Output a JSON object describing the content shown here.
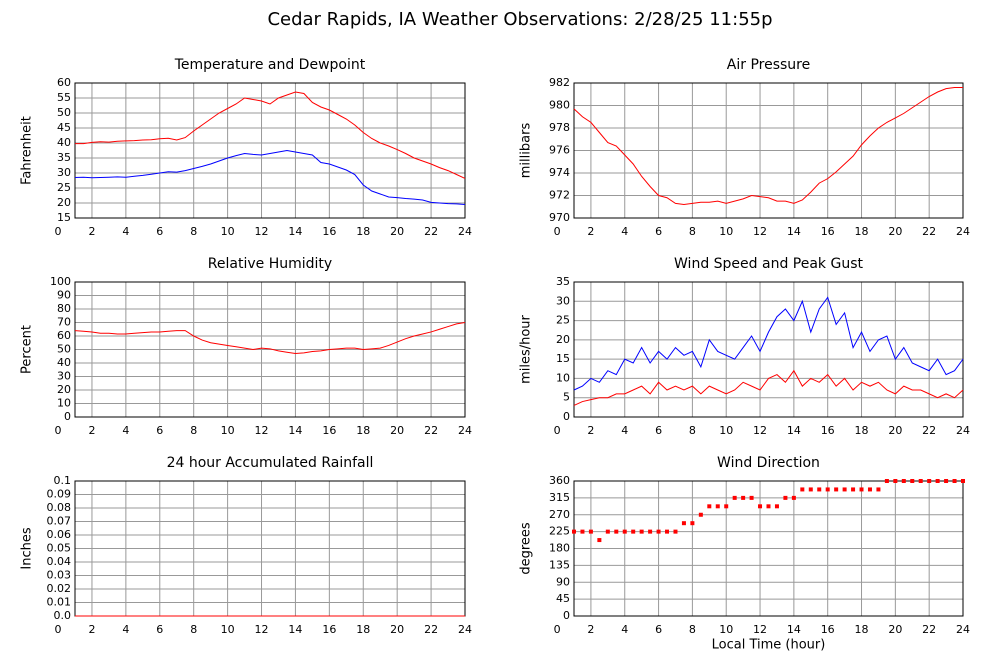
{
  "title": "Cedar Rapids, IA Weather Observations: 2/28/25 11:55p",
  "chart_data": [
    {
      "type": "line",
      "title": "Temperature and Dewpoint",
      "ylabel": "Fahrenheit",
      "x": [
        1,
        1.5,
        2,
        2.5,
        3,
        3.5,
        4,
        4.5,
        5,
        5.5,
        6,
        6.5,
        7,
        7.5,
        8,
        8.5,
        9,
        9.5,
        10,
        10.5,
        11,
        11.5,
        12,
        12.5,
        13,
        13.5,
        14,
        14.5,
        15,
        15.5,
        16,
        16.5,
        17,
        17.5,
        18,
        18.5,
        19,
        19.5,
        20,
        20.5,
        21,
        21.5,
        22,
        22.5,
        23,
        23.5,
        24
      ],
      "series": [
        {
          "name": "Temperature",
          "color": "#ff0000",
          "values": [
            39.8,
            39.8,
            40.2,
            40.4,
            40.3,
            40.6,
            40.7,
            40.8,
            41,
            41.1,
            41.4,
            41.6,
            41,
            41.8,
            44,
            46,
            48,
            50,
            51.5,
            53,
            55,
            54.5,
            54,
            53,
            55,
            56,
            57,
            56.5,
            53.5,
            52,
            51,
            49.5,
            48,
            46,
            43.5,
            41.5,
            40,
            39,
            37.8,
            36.5,
            35,
            34,
            33,
            31.8,
            30.8,
            29.5,
            28.2
          ]
        },
        {
          "name": "Dewpoint",
          "color": "#0000ff",
          "values": [
            28.5,
            28.6,
            28.4,
            28.5,
            28.6,
            28.7,
            28.6,
            28.9,
            29.2,
            29.6,
            30,
            30.4,
            30.3,
            30.8,
            31.5,
            32.2,
            33,
            34,
            35,
            35.8,
            36.5,
            36.2,
            36,
            36.5,
            37,
            37.5,
            37,
            36.5,
            36,
            33.5,
            33,
            32,
            31,
            29.5,
            26,
            24,
            23,
            22,
            21.8,
            21.5,
            21.3,
            21,
            20.2,
            20,
            19.8,
            19.7,
            19.5
          ]
        }
      ],
      "xlim": [
        1,
        24
      ],
      "xticks": [
        0,
        2,
        4,
        6,
        8,
        10,
        12,
        14,
        16,
        18,
        20,
        22,
        24
      ],
      "ylim": [
        15,
        60
      ],
      "yticks": [
        15,
        20,
        25,
        30,
        35,
        40,
        45,
        50,
        55,
        60
      ],
      "grid": true
    },
    {
      "type": "line",
      "title": "Air Pressure",
      "ylabel": "millibars",
      "x": [
        1,
        1.5,
        2,
        2.5,
        3,
        3.5,
        4,
        4.5,
        5,
        5.5,
        6,
        6.5,
        7,
        7.5,
        8,
        8.5,
        9,
        9.5,
        10,
        10.5,
        11,
        11.5,
        12,
        12.5,
        13,
        13.5,
        14,
        14.5,
        15,
        15.5,
        16,
        16.5,
        17,
        17.5,
        18,
        18.5,
        19,
        19.5,
        20,
        20.5,
        21,
        21.5,
        22,
        22.5,
        23,
        23.5,
        24
      ],
      "series": [
        {
          "name": "Pressure",
          "color": "#ff0000",
          "values": [
            979.7,
            979,
            978.5,
            977.6,
            976.7,
            976.4,
            975.6,
            974.8,
            973.7,
            972.8,
            972,
            971.8,
            971.3,
            971.2,
            971.3,
            971.4,
            971.4,
            971.5,
            971.3,
            971.5,
            971.7,
            972,
            971.9,
            971.8,
            971.5,
            971.5,
            971.3,
            971.6,
            972.3,
            973.1,
            973.5,
            974.1,
            974.8,
            975.5,
            976.5,
            977.3,
            978,
            978.5,
            978.9,
            979.3,
            979.8,
            980.3,
            980.8,
            981.2,
            981.5,
            981.6,
            981.6
          ]
        }
      ],
      "xlim": [
        1,
        24
      ],
      "xticks": [
        0,
        2,
        4,
        6,
        8,
        10,
        12,
        14,
        16,
        18,
        20,
        22,
        24
      ],
      "ylim": [
        970,
        982
      ],
      "yticks": [
        970,
        972,
        974,
        976,
        978,
        980,
        982
      ],
      "grid": true
    },
    {
      "type": "line",
      "title": "Relative Humidity",
      "ylabel": "Percent",
      "x": [
        1,
        1.5,
        2,
        2.5,
        3,
        3.5,
        4,
        4.5,
        5,
        5.5,
        6,
        6.5,
        7,
        7.5,
        8,
        8.5,
        9,
        9.5,
        10,
        10.5,
        11,
        11.5,
        12,
        12.5,
        13,
        13.5,
        14,
        14.5,
        15,
        15.5,
        16,
        16.5,
        17,
        17.5,
        18,
        18.5,
        19,
        19.5,
        20,
        20.5,
        21,
        21.5,
        22,
        22.5,
        23,
        23.5,
        24
      ],
      "series": [
        {
          "name": "Relative Humidity",
          "color": "#ff0000",
          "values": [
            64,
            63.5,
            63,
            62,
            62,
            61.5,
            61.5,
            62,
            62.5,
            63,
            63,
            63.5,
            64,
            64,
            60,
            57,
            55,
            54,
            53,
            52,
            51,
            50,
            51,
            50.5,
            49,
            48,
            47,
            47.5,
            48.5,
            49,
            50,
            50.5,
            51,
            51,
            50,
            50.5,
            51,
            53,
            55.5,
            58,
            60,
            61.5,
            63,
            65,
            67,
            69,
            70
          ]
        }
      ],
      "xlim": [
        1,
        24
      ],
      "xticks": [
        0,
        2,
        4,
        6,
        8,
        10,
        12,
        14,
        16,
        18,
        20,
        22,
        24
      ],
      "ylim": [
        0,
        100
      ],
      "yticks": [
        0,
        10,
        20,
        30,
        40,
        50,
        60,
        70,
        80,
        90,
        100
      ],
      "grid": true
    },
    {
      "type": "line",
      "title": "Wind Speed and Peak Gust",
      "ylabel": "miles/hour",
      "x": [
        1,
        1.5,
        2,
        2.5,
        3,
        3.5,
        4,
        4.5,
        5,
        5.5,
        6,
        6.5,
        7,
        7.5,
        8,
        8.5,
        9,
        9.5,
        10,
        10.5,
        11,
        11.5,
        12,
        12.5,
        13,
        13.5,
        14,
        14.5,
        15,
        15.5,
        16,
        16.5,
        17,
        17.5,
        18,
        18.5,
        19,
        19.5,
        20,
        20.5,
        21,
        21.5,
        22,
        22.5,
        23,
        23.5,
        24
      ],
      "series": [
        {
          "name": "Peak Gust",
          "color": "#0000ff",
          "values": [
            7,
            8,
            10,
            9,
            12,
            11,
            15,
            14,
            18,
            14,
            17,
            15,
            18,
            16,
            17,
            13,
            20,
            17,
            16,
            15,
            18,
            21,
            17,
            22,
            26,
            28,
            25,
            30,
            22,
            28,
            31,
            24,
            27,
            18,
            22,
            17,
            20,
            21,
            15,
            18,
            14,
            13,
            12,
            15,
            11,
            12,
            15
          ]
        },
        {
          "name": "Wind Speed",
          "color": "#ff0000",
          "values": [
            3,
            4,
            4.5,
            5,
            5,
            6,
            6,
            7,
            8,
            6,
            9,
            7,
            8,
            7,
            8,
            6,
            8,
            7,
            6,
            7,
            9,
            8,
            7,
            10,
            11,
            9,
            12,
            8,
            10,
            9,
            11,
            8,
            10,
            7,
            9,
            8,
            9,
            7,
            6,
            8,
            7,
            7,
            6,
            5,
            6,
            5,
            7
          ]
        }
      ],
      "xlim": [
        1,
        24
      ],
      "xticks": [
        0,
        2,
        4,
        6,
        8,
        10,
        12,
        14,
        16,
        18,
        20,
        22,
        24
      ],
      "ylim": [
        0,
        35
      ],
      "yticks": [
        0,
        5,
        10,
        15,
        20,
        25,
        30,
        35
      ],
      "grid": true
    },
    {
      "type": "line",
      "title": "24 hour Accumulated Rainfall",
      "ylabel": "Inches",
      "x": [
        1,
        24
      ],
      "series": [
        {
          "name": "Rainfall",
          "color": "#ff0000",
          "values": [
            0,
            0
          ]
        }
      ],
      "xlim": [
        1,
        24
      ],
      "xticks": [
        0,
        2,
        4,
        6,
        8,
        10,
        12,
        14,
        16,
        18,
        20,
        22,
        24
      ],
      "ylim": [
        0,
        0.1
      ],
      "yticks": [
        {
          "value": 0,
          "label": "0.0"
        },
        0.01,
        0.02,
        0.03,
        0.04,
        0.05,
        0.06,
        0.07,
        0.08,
        0.09,
        0.1
      ],
      "grid": true
    },
    {
      "type": "scatter",
      "title": "Wind Direction",
      "ylabel": "degrees",
      "xlabel": "Local Time (hour)",
      "x": [
        1,
        1.5,
        2,
        2.5,
        3,
        3.5,
        4,
        4.5,
        5,
        5.5,
        6,
        6.5,
        7,
        7.5,
        8,
        8.5,
        9,
        9.5,
        10,
        10.5,
        11,
        11.5,
        12,
        12.5,
        13,
        13.5,
        14,
        14.5,
        15,
        15.5,
        16,
        16.5,
        17,
        17.5,
        18,
        18.5,
        19,
        19.5,
        20,
        20.5,
        21,
        21.5,
        22,
        22.5,
        23,
        23.5,
        24
      ],
      "series": [
        {
          "name": "Wind Direction",
          "color": "#ff0000",
          "values": [
            225,
            225,
            225,
            202.5,
            225,
            225,
            225,
            225,
            225,
            225,
            225,
            225,
            225,
            247.5,
            247.5,
            270,
            292.5,
            292.5,
            292.5,
            315,
            315,
            315,
            292.5,
            292.5,
            292.5,
            315,
            315,
            337.5,
            337.5,
            337.5,
            337.5,
            337.5,
            337.5,
            337.5,
            337.5,
            337.5,
            337.5,
            360,
            360,
            360,
            360,
            360,
            360,
            360,
            360,
            360,
            360
          ]
        }
      ],
      "xlim": [
        1,
        24
      ],
      "xticks": [
        0,
        2,
        4,
        6,
        8,
        10,
        12,
        14,
        16,
        18,
        20,
        22,
        24
      ],
      "ylim": [
        0,
        360
      ],
      "yticks": [
        0,
        45,
        90,
        135,
        180,
        225,
        270,
        315,
        360
      ],
      "grid": true
    }
  ]
}
